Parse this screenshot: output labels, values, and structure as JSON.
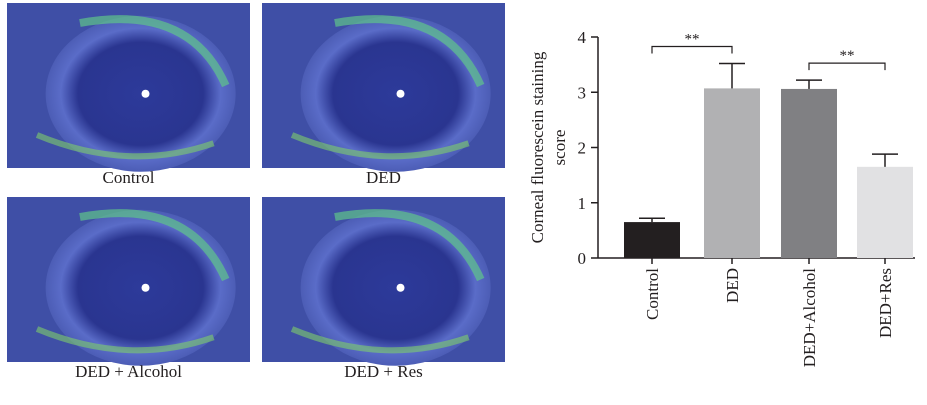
{
  "panels": [
    {
      "label": "Control"
    },
    {
      "label": "DED"
    },
    {
      "label": "DED + Alcohol"
    },
    {
      "label": "DED + Res"
    }
  ],
  "chart_data": {
    "type": "bar",
    "ylabel": [
      "Corneal fluorescein staining",
      "score"
    ],
    "categories": [
      "Control",
      "DED",
      "DED+Alcohol",
      "DED+Res"
    ],
    "values": [
      0.65,
      3.07,
      3.06,
      1.65
    ],
    "errors": [
      0.07,
      0.45,
      0.16,
      0.23
    ],
    "colors": [
      "#231f20",
      "#b1b1b3",
      "#808083",
      "#e1e1e3"
    ],
    "ylim": [
      0,
      4
    ],
    "yticks": [
      0,
      1,
      2,
      3,
      4
    ],
    "annotations": [
      {
        "label": "**",
        "between": [
          0,
          1
        ]
      },
      {
        "label": "**",
        "between": [
          2,
          3
        ]
      }
    ]
  }
}
